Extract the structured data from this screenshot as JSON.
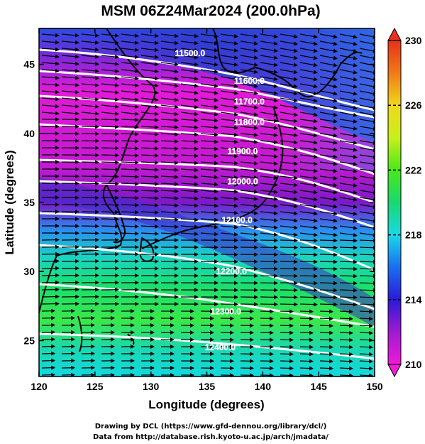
{
  "title": "MSM 06Z24Mar2024 (200.0hPa)",
  "axes": {
    "xlabel": "Longitude (degrees)",
    "ylabel": "Latitude  (degrees)",
    "xlim": [
      120,
      150
    ],
    "ylim": [
      22.4,
      47.6
    ],
    "xticks": [
      {
        "value": 120,
        "label": "120"
      },
      {
        "value": 125,
        "label": "125"
      },
      {
        "value": 130,
        "label": "130"
      },
      {
        "value": 135,
        "label": "135"
      },
      {
        "value": 140,
        "label": "140"
      },
      {
        "value": 145,
        "label": "145"
      },
      {
        "value": 150,
        "label": "150"
      }
    ],
    "yticks": [
      {
        "value": 25,
        "label": "25"
      },
      {
        "value": 30,
        "label": "30"
      },
      {
        "value": 35,
        "label": "35"
      },
      {
        "value": 40,
        "label": "40"
      },
      {
        "value": 45,
        "label": "45"
      }
    ]
  },
  "colorbar": {
    "min": 210,
    "max": 230,
    "ticks": [
      {
        "value": 210,
        "label": "210"
      },
      {
        "value": 214,
        "label": "214"
      },
      {
        "value": 218,
        "label": "218"
      },
      {
        "value": 222,
        "label": "222"
      },
      {
        "value": 226,
        "label": "226"
      },
      {
        "value": 230,
        "label": "230"
      }
    ]
  },
  "contours": [
    {
      "label": "11500.0",
      "label_lon": 133.5,
      "label_lat": 45.6
    },
    {
      "label": "11600.0",
      "label_lon": 138.8,
      "label_lat": 43.6
    },
    {
      "label": "11700.0",
      "label_lon": 138.8,
      "label_lat": 42.1
    },
    {
      "label": "11800.0",
      "label_lon": 138.8,
      "label_lat": 40.6
    },
    {
      "label": "11900.0",
      "label_lon": 138.2,
      "label_lat": 38.5
    },
    {
      "label": "12000.0",
      "label_lon": 138.2,
      "label_lat": 36.3
    },
    {
      "label": "12100.0",
      "label_lon": 137.7,
      "label_lat": 33.5
    },
    {
      "label": "12200.0",
      "label_lon": 137.2,
      "label_lat": 29.8
    },
    {
      "label": "12300.0",
      "label_lon": 136.7,
      "label_lat": 26.9
    },
    {
      "label": "12400.0",
      "label_lon": 136.2,
      "label_lat": 24.3
    }
  ],
  "credits": {
    "line1": "Drawing by DCL (https://www.gfd-dennou.org/library/dcl/)",
    "line2": "Data from http://database.rish.kyoto-u.ac.jp/arch/jmadata/"
  }
}
